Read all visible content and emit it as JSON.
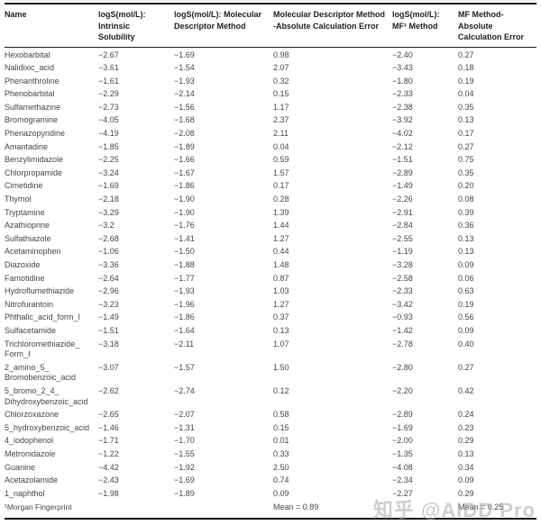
{
  "table": {
    "columns": [
      "Name",
      "logS(mol/L):\nIntrinsic\nSolubility",
      "logS(mol/L): Molecular\nDescriptor Method",
      "Molecular Descriptor Method\n-Absolute Calculation Error",
      "logS(mol/L):\nMF¹ Method",
      "MF Method-\nAbsolute\nCalculation Error"
    ],
    "rows": [
      [
        "Hexobarbital",
        "−2.67",
        "−1.69",
        "0.98",
        "−2.40",
        "0.27"
      ],
      [
        "Nalidixic_acid",
        "−3.61",
        "−1.54",
        "2.07",
        "−3.43",
        "0.18"
      ],
      [
        "Phenanthroline",
        "−1.61",
        "−1.93",
        "0.32",
        "−1.80",
        "0.19"
      ],
      [
        "Phenobarbital",
        "−2.29",
        "−2.14",
        "0.15",
        "−2.33",
        "0.04"
      ],
      [
        "Sulfamethazine",
        "−2.73",
        "−1.56",
        "1.17",
        "−2.38",
        "0.35"
      ],
      [
        "Bromogramine",
        "−4.05",
        "−1.68",
        "2.37",
        "−3.92",
        "0.13"
      ],
      [
        "Phenazopyridine",
        "−4.19",
        "−2.08",
        "2.11",
        "−4.02",
        "0.17"
      ],
      [
        "Amantadine",
        "−1.85",
        "−1.89",
        "0.04",
        "−2.12",
        "0.27"
      ],
      [
        "Benzylimidazole",
        "−2.25",
        "−1.66",
        "0.59",
        "−1.51",
        "0.75"
      ],
      [
        "Chlorpropamide",
        "−3.24",
        "−1.67",
        "1.57",
        "−2.89",
        "0.35"
      ],
      [
        "Cimetidine",
        "−1.69",
        "−1.86",
        "0.17",
        "−1.49",
        "0.20"
      ],
      [
        "Thymol",
        "−2.18",
        "−1.90",
        "0.28",
        "−2.26",
        "0.08"
      ],
      [
        "Tryptamine",
        "−3.29",
        "−1.90",
        "1.39",
        "−2.91",
        "0.39"
      ],
      [
        "Azathioprine",
        "−3.2",
        "−1.76",
        "1.44",
        "−2.84",
        "0.36"
      ],
      [
        "Sulfathiazole",
        "−2.68",
        "−1.41",
        "1.27",
        "−2.55",
        "0.13"
      ],
      [
        "Acetaminophen",
        "−1.06",
        "−1.50",
        "0.44",
        "−1.19",
        "0.13"
      ],
      [
        "Diazoxide",
        "−3.36",
        "−1.88",
        "1.48",
        "−3.28",
        "0.09"
      ],
      [
        "Famotidine",
        "−2.64",
        "−1.77",
        "0.87",
        "−2.58",
        "0.06"
      ],
      [
        "Hydroflumethiazide",
        "−2.96",
        "−1.93",
        "1.03",
        "−2.33",
        "0.63"
      ],
      [
        "Nitrofurantoin",
        "−3.23",
        "−1.96",
        "1.27",
        "−3.42",
        "0.19"
      ],
      [
        "Phthalic_acid_form_I",
        "−1.49",
        "−1.86",
        "0.37",
        "−0.93",
        "0.56"
      ],
      [
        "Sulfacetamide",
        "−1.51",
        "−1.64",
        "0.13",
        "−1.42",
        "0.09"
      ],
      [
        "Trichloromethiazide_\nForm_I",
        "−3.18",
        "−2.11",
        "1.07",
        "−2.78",
        "0.40"
      ],
      [
        "2_amino_5_\nBromobenzoic_acid",
        "−3.07",
        "−1.57",
        "1.50",
        "−2.80",
        "0.27"
      ],
      [
        "5_bromo_2_4_\nDihydroxybenzoic_acid",
        "−2.62",
        "−2.74",
        "0.12",
        "−2.20",
        "0.42"
      ],
      [
        "Chlorzoxazone",
        "−2.65",
        "−2.07",
        "0.58",
        "−2.89",
        "0.24"
      ],
      [
        "5_hydroxybenzoic_acid",
        "−1.46",
        "−1.31",
        "0.15",
        "−1.69",
        "0.23"
      ],
      [
        "4_iodophenol",
        "−1.71",
        "−1.70",
        "0.01",
        "−2.00",
        "0.29"
      ],
      [
        "Metronidazole",
        "−1.22",
        "−1.55",
        "0.33",
        "−1.35",
        "0.13"
      ],
      [
        "Guanine",
        "−4.42",
        "−1.92",
        "2.50",
        "−4.08",
        "0.34"
      ],
      [
        "Acetazolamide",
        "−2.43",
        "−1.69",
        "0.74",
        "−2.34",
        "0.09"
      ],
      [
        "1_naphthol",
        "−1.98",
        "−1.89",
        "0.09",
        "−2.27",
        "0.29"
      ]
    ],
    "footer": [
      "¹Morgan Fingerprint",
      "",
      "",
      "Mean = 0.89",
      "",
      "Mean = 0.25"
    ]
  },
  "watermark": {
    "text": "知乎 @AIDD Pro"
  },
  "colors": {
    "rule": "#161616",
    "header_text": "#1d1d1f",
    "body_text": "#454547",
    "watermark": "#a5a5a5"
  }
}
